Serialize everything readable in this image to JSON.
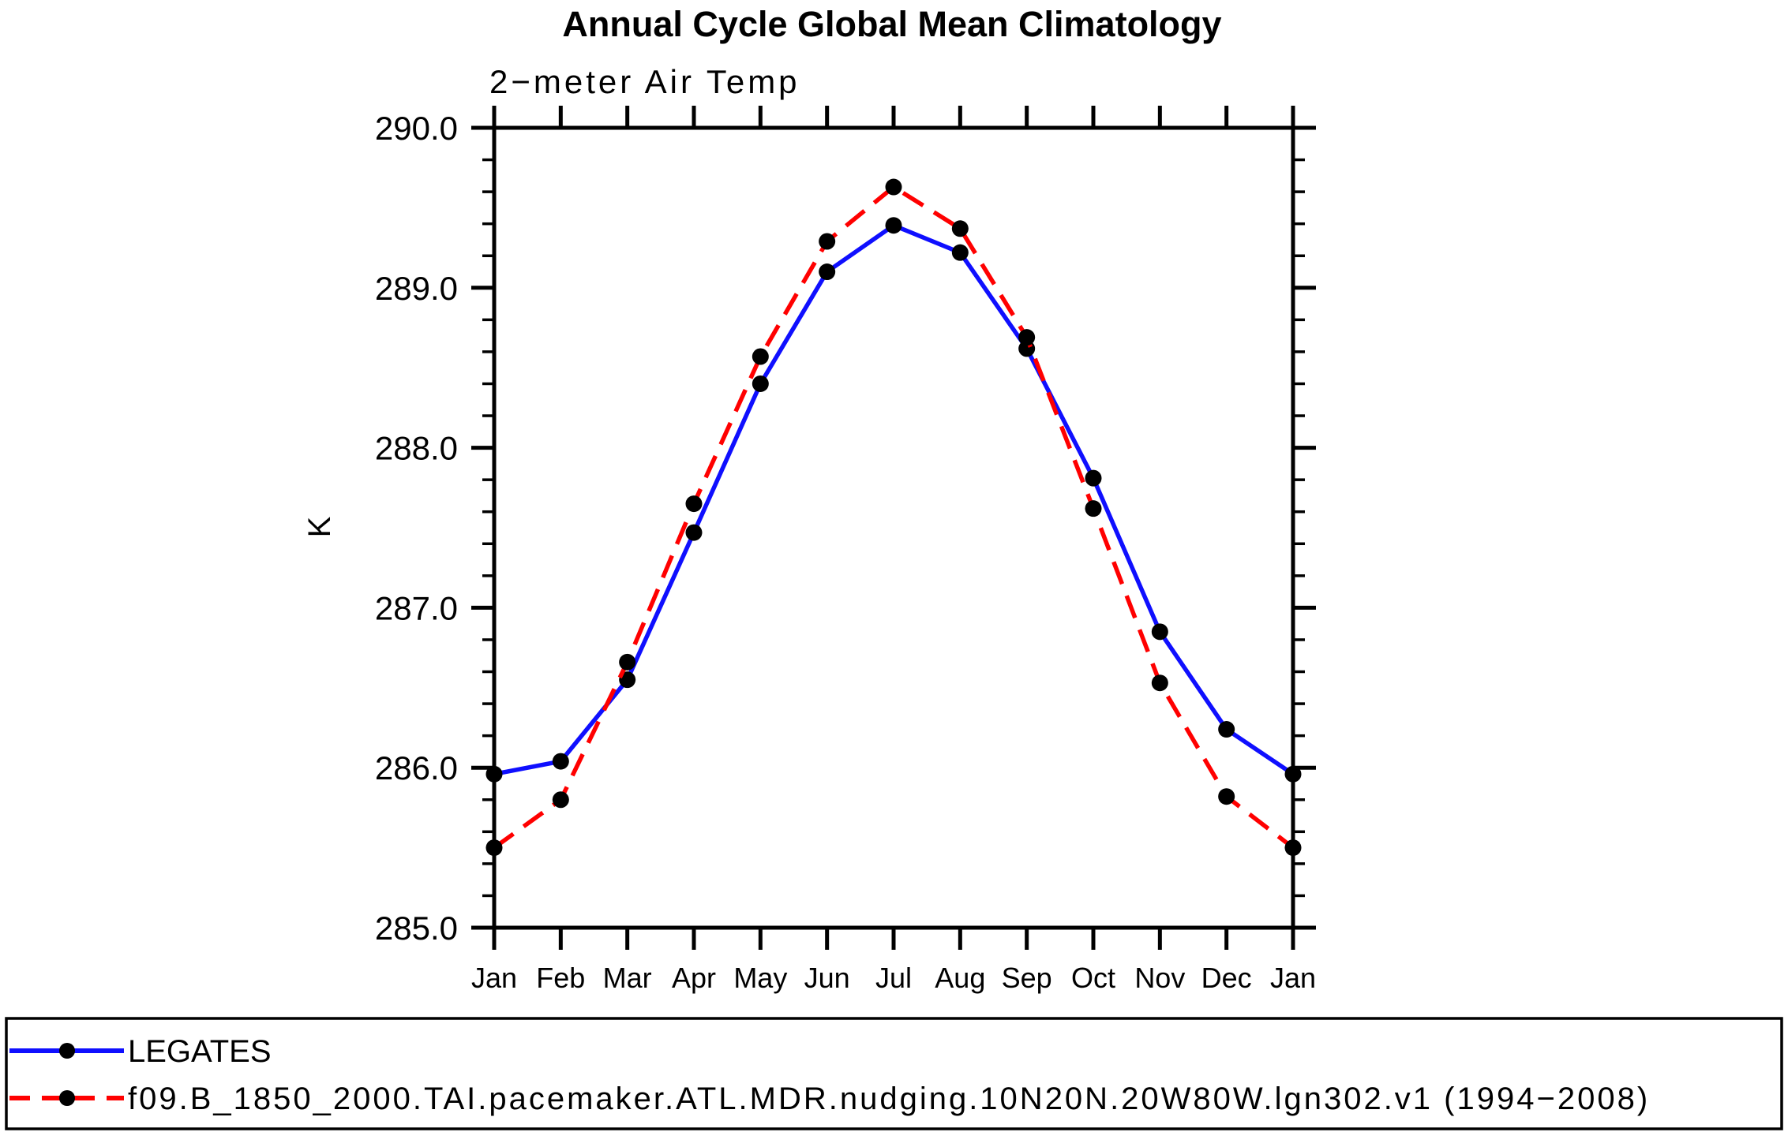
{
  "chart_data": {
    "type": "line",
    "title": "Annual Cycle Global Mean Climatology",
    "subtitle": "2−meter Air Temp",
    "ylabel": "K",
    "categories": [
      "Jan",
      "Feb",
      "Mar",
      "Apr",
      "May",
      "Jun",
      "Jul",
      "Aug",
      "Sep",
      "Oct",
      "Nov",
      "Dec",
      "Jan"
    ],
    "ylim": [
      285.0,
      290.0
    ],
    "ymajor_step": 1.0,
    "yminor_step": 0.2,
    "ytick_labels": [
      "285.0",
      "286.0",
      "287.0",
      "288.0",
      "289.0",
      "290.0"
    ],
    "grid": "off",
    "legend_position": "bottom",
    "axis_color": "#000000",
    "marker_color": "#000000",
    "series": [
      {
        "name": "LEGATES",
        "color": "#0f0fff",
        "style": "solid",
        "marker": "filled-circle",
        "values": [
          285.96,
          286.04,
          286.55,
          287.47,
          288.4,
          289.1,
          289.39,
          289.22,
          288.62,
          287.81,
          286.85,
          286.24,
          285.96
        ]
      },
      {
        "name": "f09.B_1850_2000.TAI.pacemaker.ATL.MDR.nudging.10N20N.20W80W.lgn302.v1 (1994−2008)",
        "color": "#ff0000",
        "style": "dashed",
        "marker": "filled-circle",
        "values": [
          285.5,
          285.8,
          286.66,
          287.65,
          288.57,
          289.29,
          289.63,
          289.37,
          288.69,
          287.62,
          286.53,
          285.82,
          285.5
        ]
      }
    ]
  }
}
